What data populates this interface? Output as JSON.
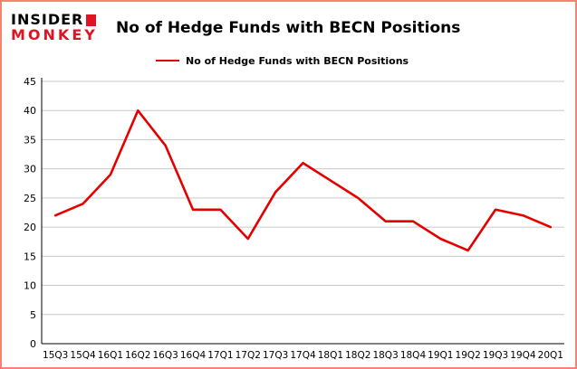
{
  "logo": {
    "line1": "INSIDER",
    "line2": "MONKEY"
  },
  "header": {
    "title": "No of Hedge Funds with BECN Positions"
  },
  "legend": {
    "label": "No of Hedge Funds with BECN Positions"
  },
  "colors": {
    "line": "#e50000",
    "grid": "#c9c9c9",
    "axis": "#000000",
    "text": "#000000",
    "frame_border": "#fa8072",
    "logo_red": "#e01323"
  },
  "chart_data": {
    "type": "line",
    "title": "No of Hedge Funds with BECN Positions",
    "series_name": "No of Hedge Funds with BECN Positions",
    "categories": [
      "15Q3",
      "15Q4",
      "16Q1",
      "16Q2",
      "16Q3",
      "16Q4",
      "17Q1",
      "17Q2",
      "17Q3",
      "17Q4",
      "18Q1",
      "18Q2",
      "18Q3",
      "18Q4",
      "19Q1",
      "19Q2",
      "19Q3",
      "19Q4",
      "20Q1"
    ],
    "values": [
      22,
      24,
      29,
      40,
      34,
      23,
      23,
      18,
      26,
      31,
      28,
      25,
      21,
      21,
      18,
      16,
      23,
      22,
      20
    ],
    "xlabel": "",
    "ylabel": "",
    "ylim": [
      0,
      45
    ],
    "yticks": [
      0,
      5,
      10,
      15,
      20,
      25,
      30,
      35,
      40,
      45
    ],
    "grid": true,
    "legend_position": "top-left",
    "line_color": "#e50000"
  }
}
